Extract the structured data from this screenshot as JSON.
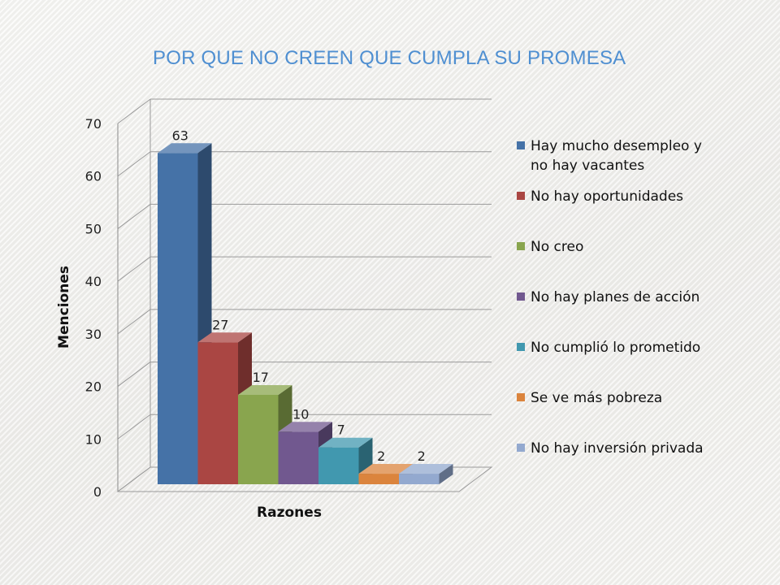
{
  "title": "POR QUE NO CREEN QUE CUMPLA SU PROMESA",
  "chart_data": {
    "type": "bar",
    "title": "POR QUE NO CREEN QUE CUMPLA SU PROMESA",
    "xlabel": "Razones",
    "ylabel": "Menciones",
    "ylim": [
      0,
      70
    ],
    "yticks": [
      0,
      10,
      20,
      30,
      40,
      50,
      60,
      70
    ],
    "grid": true,
    "legend_position": "right",
    "three_d": true,
    "series": [
      {
        "name": "Hay mucho desempleo y no hay vacantes",
        "legend_lines": [
          "Hay mucho desempleo y",
          "no hay vacantes"
        ],
        "value": 63,
        "color": "#4572a7"
      },
      {
        "name": "No hay oportunidades",
        "legend_lines": [
          "No hay oportunidades"
        ],
        "value": 27,
        "color": "#aa4643"
      },
      {
        "name": "No creo",
        "legend_lines": [
          "No creo"
        ],
        "value": 17,
        "color": "#89a54e"
      },
      {
        "name": "No hay planes de acción",
        "legend_lines": [
          "No hay planes de acción"
        ],
        "value": 10,
        "color": "#71588f"
      },
      {
        "name": "No cumplió lo prometido",
        "legend_lines": [
          "No cumplió lo prometido"
        ],
        "value": 7,
        "color": "#4198af"
      },
      {
        "name": "Se ve más pobreza",
        "legend_lines": [
          "Se ve más pobreza"
        ],
        "value": 2,
        "color": "#db843d"
      },
      {
        "name": "No hay inversión privada",
        "legend_lines": [
          "No hay inversión privada"
        ],
        "value": 2,
        "color": "#93a9cf"
      }
    ]
  }
}
